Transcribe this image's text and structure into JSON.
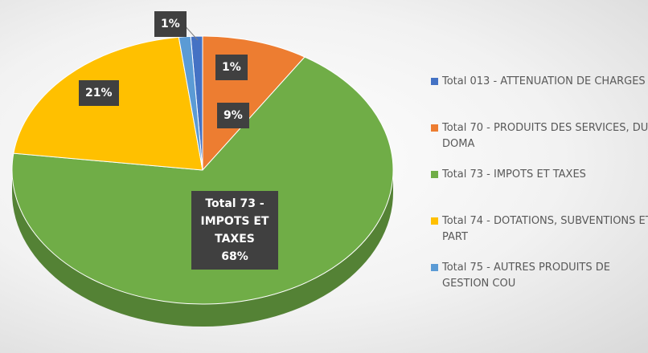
{
  "chart_data": {
    "type": "pie",
    "categories": [
      "Total 013 - ATTENUATION DE CHARGES",
      "Total 70 - PRODUITS DES SERVICES, DU DOMA",
      "Total 73 - IMPOTS ET TAXES",
      "Total 74 - DOTATIONS, SUBVENTIONS ET PART",
      "Total 75 - AUTRES PRODUITS DE GESTION COU"
    ],
    "values": [
      1,
      9,
      68,
      21,
      1
    ],
    "value_labels": [
      "1%",
      "9%",
      "68%",
      "21%",
      "1%"
    ],
    "colors": [
      "#4472c4",
      "#ed7d31",
      "#70ad47",
      "#ffc000",
      "#5b9bd5"
    ],
    "legend": "right"
  }
}
